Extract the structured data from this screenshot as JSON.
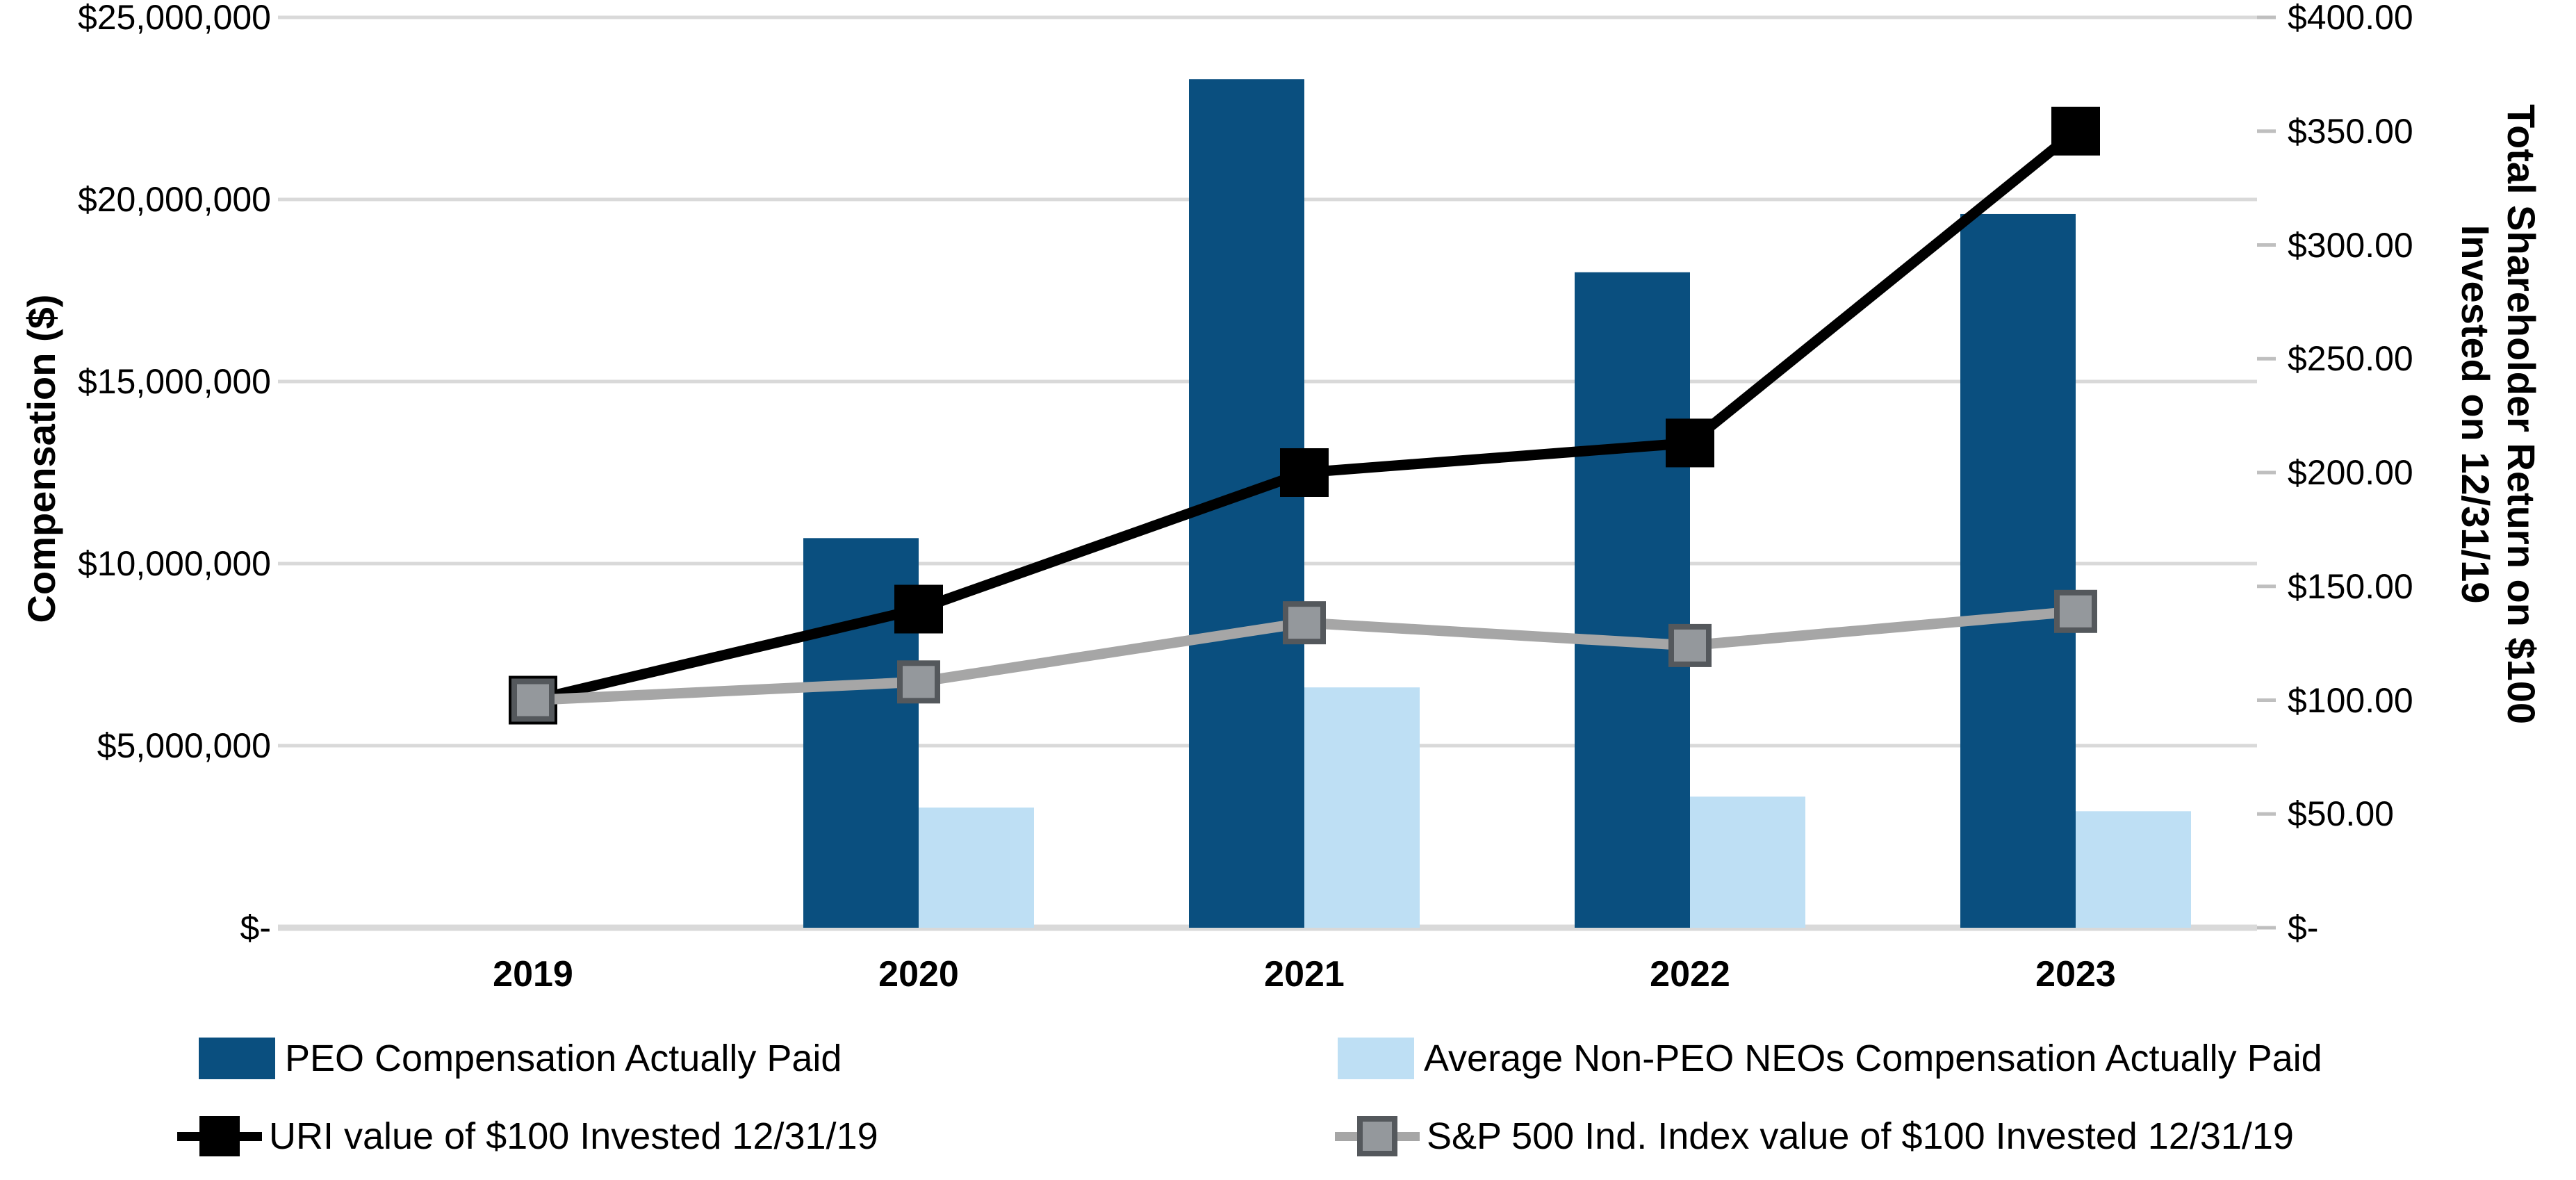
{
  "chart_data": {
    "type": "combo-bar-line",
    "categories": [
      "2019",
      "2020",
      "2021",
      "2022",
      "2023"
    ],
    "series": [
      {
        "name": "PEO Compensation Actually Paid",
        "type": "bar",
        "axis": "left",
        "color": "#0A4F7F",
        "values": [
          null,
          10700000,
          23300000,
          18000000,
          19600000
        ]
      },
      {
        "name": "Average Non-PEO NEOs Compensation Actually Paid",
        "type": "bar",
        "axis": "left",
        "color": "#BEDFF4",
        "values": [
          null,
          3300000,
          6600000,
          3600000,
          3200000
        ]
      },
      {
        "name": "URI value of $100 Invested 12/31/19",
        "type": "line",
        "axis": "right",
        "color": "#000000",
        "marker_fill": "#000000",
        "marker_border": "#000000",
        "values": [
          100,
          140,
          200,
          213,
          350
        ]
      },
      {
        "name": "S&P 500 Ind. Index value of $100 Invested 12/31/19",
        "type": "line",
        "axis": "right",
        "color": "#A6A6A6",
        "marker_fill": "#94989C",
        "marker_border": "#54585C",
        "values": [
          100,
          108,
          134,
          124,
          139
        ]
      }
    ],
    "left_axis": {
      "title": "Compensation ($)",
      "min": 0,
      "max": 25000000,
      "tick_labels": [
        "$25,000,000",
        "$20,000,000",
        "$15,000,000",
        "$10,000,000",
        "$5,000,000",
        "$-"
      ]
    },
    "right_axis": {
      "title_line1": "Total Shareholder Return on $100",
      "title_line2": "Invested on 12/31/19",
      "min": 0,
      "max": 400,
      "tick_labels": [
        "$400.00",
        "$350.00",
        "$300.00",
        "$250.00",
        "$200.00",
        "$150.00",
        "$100.00",
        "$50.00",
        "$-"
      ]
    },
    "grid": {
      "color": "#D9D9D9",
      "baseline_color": "#D9D9D9",
      "tick_mark_color": "#BFBFBF"
    },
    "legend_position": "bottom"
  }
}
